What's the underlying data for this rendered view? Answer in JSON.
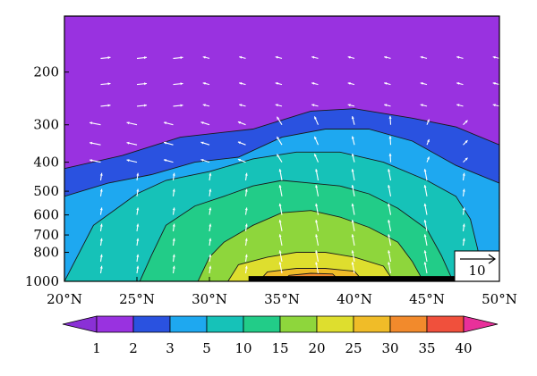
{
  "chart_data": {
    "type": "heatmap",
    "title": "",
    "xlabel": "",
    "ylabel": "",
    "x_range": [
      "20°N",
      "50°N"
    ],
    "y_range": [
      1000,
      100
    ],
    "y_scale": "log",
    "x_ticks": [
      {
        "value": 20,
        "label": "20°N"
      },
      {
        "value": 25,
        "label": "25°N"
      },
      {
        "value": 30,
        "label": "30°N"
      },
      {
        "value": 35,
        "label": "35°N"
      },
      {
        "value": 40,
        "label": "40°N"
      },
      {
        "value": 45,
        "label": "45°N"
      },
      {
        "value": 50,
        "label": "50°N"
      }
    ],
    "y_ticks": [
      {
        "value": 200,
        "label": "200"
      },
      {
        "value": 300,
        "label": "300"
      },
      {
        "value": 400,
        "label": "400"
      },
      {
        "value": 500,
        "label": "500"
      },
      {
        "value": 600,
        "label": "600"
      },
      {
        "value": 700,
        "label": "700"
      },
      {
        "value": 800,
        "label": "800"
      },
      {
        "value": 1000,
        "label": "1000"
      }
    ],
    "levels": [
      {
        "value": 1,
        "label": "1",
        "color": "#9932e0"
      },
      {
        "value": 2,
        "label": "2",
        "color": "#2a52e0"
      },
      {
        "value": 3,
        "label": "3",
        "color": "#1ea8f0"
      },
      {
        "value": 5,
        "label": "5",
        "color": "#16c2b8"
      },
      {
        "value": 10,
        "label": "10",
        "color": "#22cc88"
      },
      {
        "value": 15,
        "label": "15",
        "color": "#8ed63c"
      },
      {
        "value": 20,
        "label": "20",
        "color": "#dede2e"
      },
      {
        "value": 25,
        "label": "25",
        "color": "#f0bc28"
      },
      {
        "value": 30,
        "label": "30",
        "color": "#f28a2c"
      },
      {
        "value": 35,
        "label": "35",
        "color": "#f0503c"
      },
      {
        "value": 40,
        "label": "40",
        "color": "#e8309a"
      }
    ],
    "below_color": "#8a30d6",
    "contour_bands": [
      {
        "level": 1,
        "color": "#9932e0",
        "points": [
          [
            20,
            120
          ],
          [
            26,
            118
          ],
          [
            28,
            110
          ],
          [
            28,
            60
          ],
          [
            50,
            60
          ],
          [
            50,
            1050
          ],
          [
            20,
            1050
          ]
        ]
      },
      {
        "level": 2,
        "color": "#2a52e0",
        "points": [
          [
            20,
            420
          ],
          [
            24,
            380
          ],
          [
            28,
            330
          ],
          [
            33,
            310
          ],
          [
            37,
            270
          ],
          [
            40,
            265
          ],
          [
            44,
            285
          ],
          [
            47,
            305
          ],
          [
            50,
            350
          ],
          [
            50,
            1050
          ],
          [
            20,
            1050
          ]
        ]
      },
      {
        "level": 3,
        "color": "#1ea8f0",
        "points": [
          [
            20,
            520
          ],
          [
            23,
            470
          ],
          [
            26,
            440
          ],
          [
            29,
            400
          ],
          [
            32,
            385
          ],
          [
            35,
            330
          ],
          [
            38,
            310
          ],
          [
            41,
            310
          ],
          [
            44,
            340
          ],
          [
            47,
            410
          ],
          [
            50,
            470
          ],
          [
            50,
            1050
          ],
          [
            20,
            1050
          ]
        ]
      },
      {
        "level": 5,
        "color": "#16c2b8",
        "points": [
          [
            20,
            1000
          ],
          [
            22,
            650
          ],
          [
            25,
            510
          ],
          [
            27,
            460
          ],
          [
            30,
            430
          ],
          [
            33,
            390
          ],
          [
            36,
            370
          ],
          [
            39,
            370
          ],
          [
            42,
            400
          ],
          [
            45,
            460
          ],
          [
            47,
            520
          ],
          [
            48,
            620
          ],
          [
            48.5,
            780
          ],
          [
            49,
            1050
          ],
          [
            20,
            1050
          ]
        ]
      },
      {
        "level": 10,
        "color": "#22cc88",
        "points": [
          [
            25,
            1050
          ],
          [
            26,
            820
          ],
          [
            27,
            650
          ],
          [
            29,
            560
          ],
          [
            31,
            520
          ],
          [
            33,
            480
          ],
          [
            35,
            460
          ],
          [
            37,
            470
          ],
          [
            39,
            480
          ],
          [
            41,
            510
          ],
          [
            43,
            570
          ],
          [
            45,
            670
          ],
          [
            46,
            820
          ],
          [
            47,
            1050
          ]
        ]
      },
      {
        "level": 15,
        "color": "#8ed63c",
        "points": [
          [
            29,
            1050
          ],
          [
            30,
            830
          ],
          [
            31,
            740
          ],
          [
            33,
            650
          ],
          [
            35,
            590
          ],
          [
            37,
            580
          ],
          [
            39,
            610
          ],
          [
            41,
            660
          ],
          [
            43,
            740
          ],
          [
            44,
            860
          ],
          [
            45,
            1050
          ]
        ]
      },
      {
        "level": 20,
        "color": "#dede2e",
        "points": [
          [
            31,
            1050
          ],
          [
            32,
            880
          ],
          [
            34,
            830
          ],
          [
            36,
            800
          ],
          [
            38,
            800
          ],
          [
            40,
            830
          ],
          [
            42,
            890
          ],
          [
            43,
            1050
          ]
        ]
      },
      {
        "level": 25,
        "color": "#f0bc28",
        "points": [
          [
            33,
            1050
          ],
          [
            34,
            930
          ],
          [
            36,
            905
          ],
          [
            38,
            905
          ],
          [
            40,
            925
          ],
          [
            41,
            1050
          ]
        ]
      },
      {
        "level": 30,
        "color": "#f28a2c",
        "points": [
          [
            34.5,
            1050
          ],
          [
            35.5,
            955
          ],
          [
            37,
            940
          ],
          [
            38.5,
            945
          ],
          [
            39.5,
            1050
          ]
        ]
      },
      {
        "level": 35,
        "color": "#f0503c",
        "points": [
          [
            35.8,
            1050
          ],
          [
            36.5,
            980
          ],
          [
            37.5,
            972
          ],
          [
            38.3,
            985
          ],
          [
            38.8,
            1050
          ]
        ]
      }
    ],
    "terrain": {
      "x_from": 32.7,
      "x_to": 47.4,
      "p_top": 960,
      "color": "#000000"
    },
    "wind_field": "white arrows",
    "reference_vector": {
      "label": "10"
    },
    "colorbar": {
      "orientation": "horizontal",
      "position": "bottom",
      "extend": "both"
    },
    "grid": false,
    "legend": "colorbar below plot"
  }
}
